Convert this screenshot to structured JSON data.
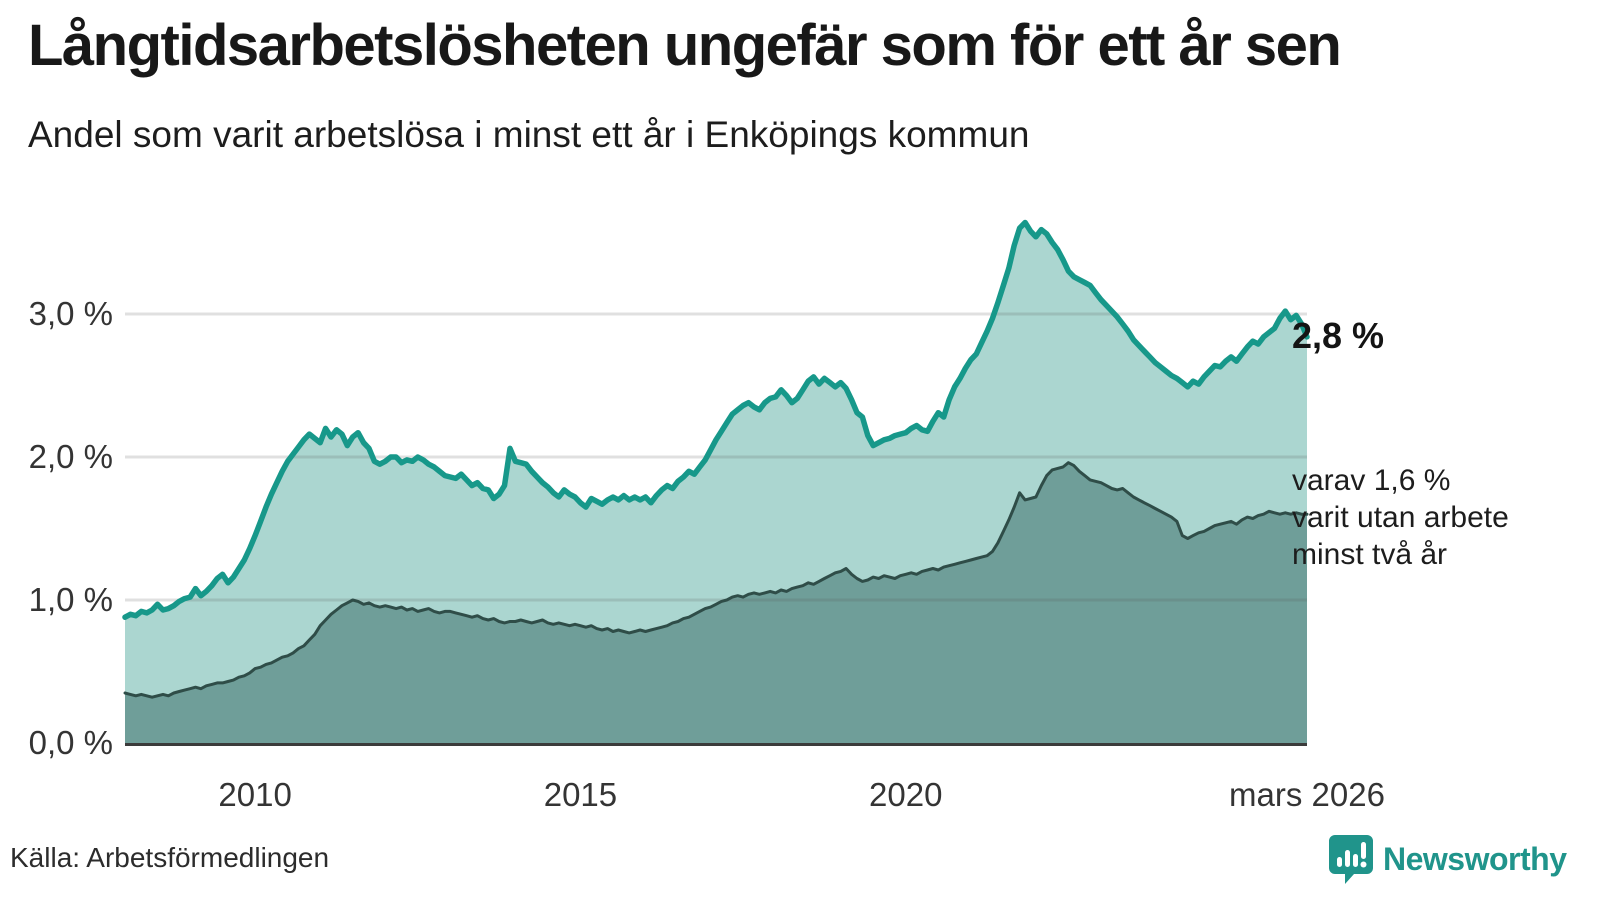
{
  "header": {
    "title": "Långtidsarbetslösheten ungefär som för ett år sen",
    "subtitle": "Andel som varit arbetslösa i minst ett år i Enköpings kommun"
  },
  "annotations": {
    "latest_total": "2,8 %",
    "two_year_line1": "varav 1,6 %",
    "two_year_line2": "varit utan arbete",
    "two_year_line3": "minst två år"
  },
  "source": "Källa: Arbetsförmedlingen",
  "branding": {
    "name": "Newsworthy"
  },
  "colors": {
    "total_line": "#17988a",
    "total_fill": "#abd6d0",
    "two_year_line": "#2f4d48",
    "two_year_fill": "#6f9e99",
    "gridline": "rgba(85,85,85,0.18)",
    "axis": "#3b3b3b",
    "brand_teal": "#20948b"
  },
  "chart_data": {
    "type": "area",
    "title": "Långtidsarbetslösheten ungefär som för ett år sen",
    "subtitle": "Andel som varit arbetslösa i minst ett år i Enköpings kommun",
    "unit": "percent",
    "frequency": "monthly",
    "x_start": "2008-01",
    "x_end": "2026-03",
    "ylim": [
      0,
      3.8
    ],
    "grid": true,
    "y_ticks": [
      {
        "label": "0,0 %",
        "value": 0
      },
      {
        "label": "1,0 %",
        "value": 1
      },
      {
        "label": "2,0 %",
        "value": 2
      },
      {
        "label": "3,0 %",
        "value": 3
      }
    ],
    "x_ticks": [
      {
        "label": "2010",
        "year": 2010.0
      },
      {
        "label": "2015",
        "year": 2015.0
      },
      {
        "label": "2020",
        "year": 2020.0
      },
      {
        "label": "mars 2026",
        "year": 2026.1667
      }
    ],
    "series": [
      {
        "name": "Andel arbetslösa minst ett år",
        "latest_value": 2.8,
        "values": [
          0.88,
          0.9,
          0.89,
          0.92,
          0.91,
          0.93,
          0.97,
          0.93,
          0.94,
          0.96,
          0.99,
          1.01,
          1.02,
          1.08,
          1.03,
          1.06,
          1.1,
          1.15,
          1.18,
          1.12,
          1.16,
          1.22,
          1.28,
          1.36,
          1.45,
          1.55,
          1.65,
          1.74,
          1.82,
          1.9,
          1.97,
          2.02,
          2.07,
          2.12,
          2.16,
          2.13,
          2.1,
          2.2,
          2.14,
          2.19,
          2.16,
          2.08,
          2.14,
          2.17,
          2.1,
          2.06,
          1.97,
          1.95,
          1.97,
          2.0,
          2.0,
          1.96,
          1.98,
          1.97,
          2.0,
          1.98,
          1.95,
          1.93,
          1.9,
          1.87,
          1.86,
          1.85,
          1.88,
          1.84,
          1.8,
          1.82,
          1.78,
          1.77,
          1.71,
          1.74,
          1.8,
          2.06,
          1.97,
          1.96,
          1.95,
          1.9,
          1.86,
          1.82,
          1.79,
          1.75,
          1.72,
          1.77,
          1.74,
          1.72,
          1.68,
          1.65,
          1.71,
          1.69,
          1.67,
          1.7,
          1.72,
          1.7,
          1.73,
          1.7,
          1.72,
          1.7,
          1.72,
          1.68,
          1.73,
          1.77,
          1.8,
          1.78,
          1.83,
          1.86,
          1.9,
          1.88,
          1.93,
          1.98,
          2.05,
          2.12,
          2.18,
          2.24,
          2.3,
          2.33,
          2.36,
          2.38,
          2.35,
          2.33,
          2.38,
          2.41,
          2.42,
          2.47,
          2.43,
          2.38,
          2.41,
          2.47,
          2.53,
          2.56,
          2.51,
          2.55,
          2.52,
          2.49,
          2.52,
          2.48,
          2.4,
          2.31,
          2.28,
          2.15,
          2.08,
          2.1,
          2.12,
          2.13,
          2.15,
          2.16,
          2.17,
          2.2,
          2.22,
          2.19,
          2.18,
          2.25,
          2.31,
          2.28,
          2.4,
          2.49,
          2.55,
          2.62,
          2.68,
          2.72,
          2.8,
          2.88,
          2.97,
          3.08,
          3.2,
          3.32,
          3.48,
          3.6,
          3.64,
          3.58,
          3.54,
          3.59,
          3.56,
          3.5,
          3.45,
          3.38,
          3.3,
          3.26,
          3.24,
          3.22,
          3.2,
          3.15,
          3.1,
          3.06,
          3.02,
          2.98,
          2.93,
          2.88,
          2.82,
          2.78,
          2.74,
          2.7,
          2.66,
          2.63,
          2.6,
          2.57,
          2.55,
          2.52,
          2.49,
          2.53,
          2.51,
          2.56,
          2.6,
          2.64,
          2.63,
          2.67,
          2.7,
          2.67,
          2.72,
          2.77,
          2.81,
          2.79,
          2.84,
          2.87,
          2.9,
          2.97,
          3.02,
          2.96,
          2.99,
          2.93,
          2.84
        ]
      },
      {
        "name": "Andel arbetslösa minst två år",
        "latest_value": 1.6,
        "values": [
          0.35,
          0.34,
          0.33,
          0.34,
          0.33,
          0.32,
          0.33,
          0.34,
          0.33,
          0.35,
          0.36,
          0.37,
          0.38,
          0.39,
          0.38,
          0.4,
          0.41,
          0.42,
          0.42,
          0.43,
          0.44,
          0.46,
          0.47,
          0.49,
          0.52,
          0.53,
          0.55,
          0.56,
          0.58,
          0.6,
          0.61,
          0.63,
          0.66,
          0.68,
          0.72,
          0.76,
          0.82,
          0.86,
          0.9,
          0.93,
          0.96,
          0.98,
          1.0,
          0.99,
          0.97,
          0.98,
          0.96,
          0.95,
          0.96,
          0.95,
          0.94,
          0.95,
          0.93,
          0.94,
          0.92,
          0.93,
          0.94,
          0.92,
          0.91,
          0.92,
          0.92,
          0.91,
          0.9,
          0.89,
          0.88,
          0.89,
          0.87,
          0.86,
          0.87,
          0.85,
          0.84,
          0.85,
          0.85,
          0.86,
          0.85,
          0.84,
          0.85,
          0.86,
          0.84,
          0.83,
          0.84,
          0.83,
          0.82,
          0.83,
          0.82,
          0.81,
          0.82,
          0.8,
          0.79,
          0.8,
          0.78,
          0.79,
          0.78,
          0.77,
          0.78,
          0.79,
          0.78,
          0.79,
          0.8,
          0.81,
          0.82,
          0.84,
          0.85,
          0.87,
          0.88,
          0.9,
          0.92,
          0.94,
          0.95,
          0.97,
          0.99,
          1.0,
          1.02,
          1.03,
          1.02,
          1.04,
          1.05,
          1.04,
          1.05,
          1.06,
          1.05,
          1.07,
          1.06,
          1.08,
          1.09,
          1.1,
          1.12,
          1.11,
          1.13,
          1.15,
          1.17,
          1.19,
          1.2,
          1.22,
          1.18,
          1.15,
          1.13,
          1.14,
          1.16,
          1.15,
          1.17,
          1.16,
          1.15,
          1.17,
          1.18,
          1.19,
          1.18,
          1.2,
          1.21,
          1.22,
          1.21,
          1.23,
          1.24,
          1.25,
          1.26,
          1.27,
          1.28,
          1.29,
          1.3,
          1.31,
          1.34,
          1.4,
          1.48,
          1.56,
          1.65,
          1.75,
          1.7,
          1.71,
          1.72,
          1.8,
          1.87,
          1.91,
          1.92,
          1.93,
          1.96,
          1.94,
          1.9,
          1.87,
          1.84,
          1.83,
          1.82,
          1.8,
          1.78,
          1.77,
          1.78,
          1.75,
          1.72,
          1.7,
          1.68,
          1.66,
          1.64,
          1.62,
          1.6,
          1.58,
          1.55,
          1.45,
          1.43,
          1.45,
          1.47,
          1.48,
          1.5,
          1.52,
          1.53,
          1.54,
          1.55,
          1.53,
          1.56,
          1.58,
          1.57,
          1.59,
          1.6,
          1.62,
          1.61,
          1.6,
          1.61,
          1.6,
          1.61,
          1.6,
          1.6
        ]
      }
    ]
  }
}
